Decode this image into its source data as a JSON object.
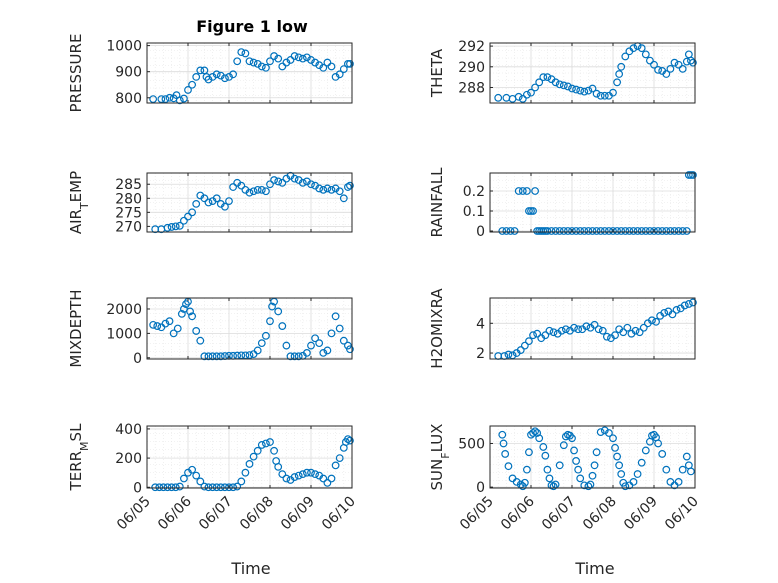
{
  "figure": {
    "title": "Figure 1 low",
    "xlabel": "Time",
    "x_ticks": [
      "06/05",
      "06/06",
      "06/07",
      "06/08",
      "06/09",
      "06/10"
    ],
    "marker_color": "#0072BD"
  },
  "chart_data": [
    {
      "type": "scatter",
      "name": "pressure",
      "ylabel_main": "PRESSURE",
      "ylabel_sub": "",
      "ylim": [
        780,
        1010
      ],
      "yticks": [
        800,
        900,
        1000
      ],
      "grid": true,
      "xlim": [
        0,
        5
      ],
      "x": [
        0.15,
        0.35,
        0.45,
        0.55,
        0.65,
        0.72,
        0.8,
        0.9,
        1,
        1.1,
        1.2,
        1.3,
        1.4,
        1.45,
        1.5,
        1.6,
        1.7,
        1.8,
        1.9,
        2.0,
        2.1,
        2.2,
        2.3,
        2.4,
        2.5,
        2.6,
        2.7,
        2.8,
        2.9,
        3.0,
        3.1,
        3.2,
        3.3,
        3.4,
        3.5,
        3.6,
        3.7,
        3.8,
        3.9,
        4.0,
        4.1,
        4.2,
        4.3,
        4.4,
        4.5,
        4.6,
        4.7,
        4.8,
        4.9,
        4.95
      ],
      "values": [
        795,
        795,
        795,
        800,
        798,
        810,
        790,
        797,
        830,
        850,
        880,
        905,
        905,
        880,
        870,
        880,
        890,
        885,
        875,
        880,
        890,
        940,
        975,
        970,
        940,
        935,
        930,
        920,
        915,
        940,
        960,
        950,
        920,
        935,
        945,
        960,
        955,
        950,
        955,
        945,
        935,
        925,
        915,
        935,
        920,
        880,
        890,
        910,
        930,
        930
      ]
    },
    {
      "type": "scatter",
      "name": "theta",
      "ylabel_main": "THETA",
      "ylabel_sub": "",
      "ylim": [
        286.5,
        292.3
      ],
      "yticks": [
        288,
        290,
        292
      ],
      "grid": true,
      "xlim": [
        0,
        5
      ],
      "x": [
        0.2,
        0.4,
        0.55,
        0.7,
        0.8,
        0.9,
        1.0,
        1.1,
        1.2,
        1.3,
        1.4,
        1.5,
        1.6,
        1.7,
        1.8,
        1.9,
        2.0,
        2.1,
        2.2,
        2.3,
        2.4,
        2.5,
        2.6,
        2.7,
        2.8,
        2.9,
        3.0,
        3.1,
        3.15,
        3.2,
        3.3,
        3.4,
        3.5,
        3.6,
        3.7,
        3.8,
        3.9,
        4.0,
        4.1,
        4.2,
        4.3,
        4.4,
        4.5,
        4.6,
        4.7,
        4.8,
        4.85,
        4.9,
        4.95
      ],
      "values": [
        287,
        287,
        286.9,
        287.1,
        286.9,
        287.3,
        287.5,
        288,
        288.5,
        289,
        289,
        288.8,
        288.5,
        288.3,
        288.2,
        288.1,
        287.9,
        287.8,
        287.7,
        287.6,
        287.7,
        287.9,
        287.4,
        287.2,
        287.2,
        287.2,
        287.5,
        288.5,
        289.3,
        290,
        291,
        291.5,
        291.8,
        292,
        291.8,
        291.2,
        290.6,
        290.2,
        289.7,
        289.6,
        289.3,
        289.8,
        290.4,
        290.2,
        289.8,
        290.5,
        291.2,
        290.6,
        290.4
      ]
    },
    {
      "type": "scatter",
      "name": "air_temp",
      "ylabel_main": "AIR",
      "ylabel_sub": "T",
      "ylabel_tail": "EMP",
      "ylim": [
        268,
        289
      ],
      "yticks": [
        270,
        275,
        280,
        285
      ],
      "grid": true,
      "xlim": [
        0,
        5
      ],
      "x": [
        0.2,
        0.35,
        0.5,
        0.6,
        0.7,
        0.8,
        0.9,
        1.0,
        1.1,
        1.2,
        1.3,
        1.4,
        1.5,
        1.6,
        1.7,
        1.8,
        1.9,
        2.0,
        2.1,
        2.2,
        2.3,
        2.4,
        2.5,
        2.6,
        2.7,
        2.8,
        2.9,
        3.0,
        3.1,
        3.2,
        3.3,
        3.4,
        3.5,
        3.6,
        3.7,
        3.8,
        3.9,
        4.0,
        4.1,
        4.2,
        4.3,
        4.4,
        4.5,
        4.6,
        4.7,
        4.8,
        4.9,
        4.95
      ],
      "values": [
        269,
        269,
        269.5,
        269.8,
        270,
        270.2,
        272,
        273.5,
        275,
        278,
        281,
        280,
        278.5,
        279,
        280,
        278,
        277,
        279,
        284,
        285.5,
        284.5,
        283,
        282,
        282.5,
        283,
        283,
        282.5,
        285,
        286.5,
        286,
        285.5,
        287,
        288,
        287,
        286.5,
        285.5,
        286,
        285,
        284.5,
        283.5,
        283,
        283.5,
        283,
        283.5,
        282.5,
        280,
        284,
        284.5
      ]
    },
    {
      "type": "scatter",
      "name": "rainfall",
      "ylabel_main": "RAINFALL",
      "ylabel_sub": "",
      "ylim": [
        -0.005,
        0.29
      ],
      "yticks": [
        0,
        0.1,
        0.2
      ],
      "grid": true,
      "xlim": [
        0,
        5
      ],
      "x": [
        0.3,
        0.4,
        0.5,
        0.6,
        0.7,
        0.8,
        0.9,
        0.95,
        1.0,
        1.05,
        1.1,
        1.15,
        1.2,
        1.25,
        1.3,
        1.35,
        1.4,
        1.5,
        1.6,
        1.7,
        1.8,
        1.9,
        2.0,
        2.1,
        2.2,
        2.3,
        2.4,
        2.5,
        2.6,
        2.7,
        2.8,
        2.9,
        3.0,
        3.1,
        3.2,
        3.3,
        3.4,
        3.5,
        3.6,
        3.7,
        3.8,
        3.9,
        4.0,
        4.1,
        4.2,
        4.3,
        4.4,
        4.5,
        4.6,
        4.7,
        4.8,
        4.85,
        4.9,
        4.95
      ],
      "values": [
        0,
        0,
        0,
        0,
        0.2,
        0.2,
        0.2,
        0.1,
        0.1,
        0.1,
        0.2,
        0,
        0,
        0,
        0,
        0,
        0,
        0,
        0,
        0,
        0,
        0,
        0,
        0,
        0,
        0,
        0,
        0,
        0,
        0,
        0,
        0,
        0,
        0,
        0,
        0,
        0,
        0,
        0,
        0,
        0,
        0,
        0,
        0,
        0,
        0,
        0,
        0,
        0,
        0,
        0,
        0.28,
        0.28,
        0.28
      ]
    },
    {
      "type": "scatter",
      "name": "mixdepth",
      "ylabel_main": "MIXDEPTH",
      "ylabel_sub": "",
      "ylim": [
        -50,
        2450
      ],
      "yticks": [
        0,
        1000,
        2000
      ],
      "grid": true,
      "xlim": [
        0,
        5
      ],
      "x": [
        0.15,
        0.25,
        0.35,
        0.45,
        0.55,
        0.65,
        0.75,
        0.85,
        0.9,
        0.95,
        1.0,
        1.05,
        1.1,
        1.2,
        1.3,
        1.4,
        1.5,
        1.6,
        1.7,
        1.8,
        1.9,
        2.0,
        2.1,
        2.2,
        2.3,
        2.4,
        2.5,
        2.6,
        2.7,
        2.8,
        2.9,
        3.0,
        3.05,
        3.1,
        3.2,
        3.3,
        3.4,
        3.5,
        3.6,
        3.7,
        3.8,
        3.9,
        4.0,
        4.1,
        4.2,
        4.3,
        4.4,
        4.5,
        4.6,
        4.7,
        4.8,
        4.9,
        4.95
      ],
      "values": [
        1350,
        1300,
        1250,
        1400,
        1500,
        1000,
        1200,
        1800,
        2000,
        2200,
        2300,
        1900,
        1700,
        1100,
        700,
        60,
        60,
        60,
        60,
        60,
        70,
        80,
        80,
        90,
        100,
        100,
        110,
        150,
        300,
        600,
        900,
        1500,
        2100,
        2300,
        1900,
        1300,
        500,
        60,
        60,
        60,
        80,
        200,
        500,
        800,
        600,
        200,
        300,
        1000,
        1700,
        1200,
        700,
        500,
        350
      ]
    },
    {
      "type": "scatter",
      "name": "h2omixra",
      "ylabel_main": "H2OMIXRA",
      "ylabel_sub": "",
      "ylim": [
        1.6,
        5.7
      ],
      "yticks": [
        2,
        4
      ],
      "grid": true,
      "xlim": [
        0,
        5
      ],
      "x": [
        0.2,
        0.35,
        0.45,
        0.55,
        0.65,
        0.75,
        0.85,
        0.95,
        1.05,
        1.15,
        1.25,
        1.35,
        1.45,
        1.55,
        1.65,
        1.75,
        1.85,
        1.95,
        2.05,
        2.15,
        2.25,
        2.35,
        2.45,
        2.55,
        2.65,
        2.75,
        2.85,
        2.95,
        3.05,
        3.15,
        3.25,
        3.35,
        3.45,
        3.55,
        3.65,
        3.75,
        3.85,
        3.95,
        4.05,
        4.15,
        4.25,
        4.35,
        4.45,
        4.55,
        4.65,
        4.75,
        4.85,
        4.95
      ],
      "values": [
        1.8,
        1.8,
        1.9,
        1.85,
        2.0,
        2.2,
        2.5,
        2.8,
        3.2,
        3.3,
        3.0,
        3.2,
        3.5,
        3.4,
        3.3,
        3.5,
        3.6,
        3.5,
        3.7,
        3.6,
        3.6,
        3.8,
        3.7,
        3.9,
        3.6,
        3.5,
        3.1,
        3.0,
        3.2,
        3.6,
        3.4,
        3.7,
        3.3,
        3.5,
        3.4,
        3.7,
        4.0,
        4.2,
        4.1,
        4.5,
        4.7,
        4.8,
        4.6,
        4.9,
        5.0,
        5.2,
        5.3,
        5.4
      ]
    },
    {
      "type": "scatter",
      "name": "terr_msl",
      "ylabel_main": "TERR",
      "ylabel_sub": "M",
      "ylabel_tail": "SL",
      "ylim": [
        -5,
        420
      ],
      "yticks": [
        0,
        200,
        400
      ],
      "grid": true,
      "xlim": [
        0,
        5
      ],
      "x": [
        0.2,
        0.3,
        0.4,
        0.5,
        0.6,
        0.7,
        0.8,
        0.9,
        1.0,
        1.1,
        1.2,
        1.3,
        1.4,
        1.5,
        1.6,
        1.7,
        1.8,
        1.9,
        2.0,
        2.1,
        2.2,
        2.3,
        2.4,
        2.5,
        2.6,
        2.7,
        2.8,
        2.9,
        3.0,
        3.1,
        3.15,
        3.2,
        3.3,
        3.4,
        3.5,
        3.6,
        3.7,
        3.8,
        3.9,
        4.0,
        4.1,
        4.2,
        4.3,
        4.4,
        4.5,
        4.6,
        4.7,
        4.8,
        4.85,
        4.9,
        4.95
      ],
      "values": [
        0,
        0,
        0,
        0,
        0,
        0,
        5,
        60,
        100,
        120,
        80,
        40,
        5,
        0,
        0,
        0,
        0,
        0,
        0,
        0,
        5,
        40,
        100,
        160,
        210,
        250,
        290,
        300,
        310,
        250,
        180,
        140,
        90,
        60,
        50,
        70,
        80,
        90,
        100,
        100,
        90,
        80,
        60,
        30,
        60,
        150,
        200,
        270,
        310,
        330,
        320
      ]
    },
    {
      "type": "scatter",
      "name": "sun_flux",
      "ylabel_main": "SUN",
      "ylabel_sub": "F",
      "ylabel_tail": "LUX",
      "ylim": [
        -10,
        700
      ],
      "yticks": [
        0,
        500
      ],
      "grid": true,
      "xlim": [
        0,
        5
      ],
      "x": [
        0.3,
        0.33,
        0.37,
        0.45,
        0.55,
        0.65,
        0.75,
        0.8,
        0.85,
        0.9,
        0.95,
        1.0,
        1.05,
        1.1,
        1.15,
        1.2,
        1.3,
        1.35,
        1.4,
        1.45,
        1.5,
        1.55,
        1.6,
        1.7,
        1.8,
        1.85,
        1.9,
        1.95,
        2.0,
        2.05,
        2.1,
        2.15,
        2.2,
        2.3,
        2.4,
        2.45,
        2.5,
        2.55,
        2.6,
        2.7,
        2.8,
        2.9,
        3.0,
        3.05,
        3.1,
        3.15,
        3.2,
        3.25,
        3.3,
        3.4,
        3.5,
        3.6,
        3.7,
        3.8,
        3.9,
        3.95,
        4.0,
        4.05,
        4.1,
        4.2,
        4.3,
        4.4,
        4.5,
        4.6,
        4.7,
        4.8,
        4.85,
        4.9
      ],
      "values": [
        600,
        500,
        380,
        240,
        100,
        60,
        30,
        10,
        50,
        200,
        400,
        600,
        620,
        640,
        620,
        560,
        460,
        360,
        200,
        100,
        20,
        10,
        30,
        250,
        480,
        580,
        600,
        590,
        560,
        420,
        300,
        200,
        100,
        20,
        10,
        30,
        130,
        250,
        400,
        630,
        650,
        620,
        560,
        450,
        350,
        250,
        150,
        50,
        10,
        20,
        60,
        150,
        280,
        420,
        520,
        590,
        600,
        570,
        500,
        380,
        200,
        60,
        20,
        60,
        200,
        350,
        250,
        180
      ]
    }
  ]
}
